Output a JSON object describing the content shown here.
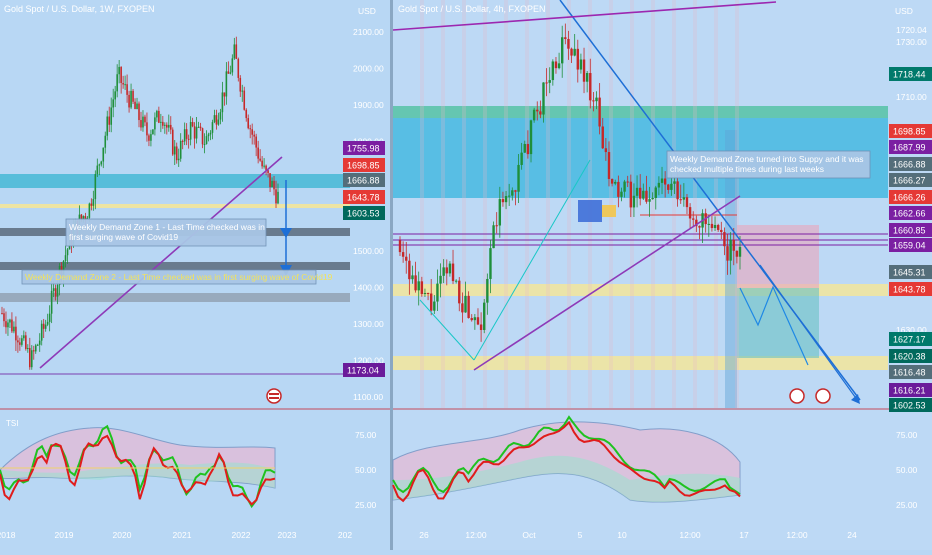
{
  "left_panel": {
    "symbol_title": "Gold Spot / U.S. Dollar, 1W, FXOPEN",
    "axis_unit": "USD",
    "price_ticks": [
      "2100.00",
      "2000.00",
      "1900.00",
      "1800.00",
      "1700.00",
      "1600.00",
      "1500.00",
      "1400.00",
      "1300.00",
      "1200.00",
      "1100.00"
    ],
    "time_labels": [
      "2018",
      "2019",
      "2020",
      "2021",
      "2022",
      "2023",
      "202"
    ],
    "price_badges": [
      {
        "label": "1755.98",
        "color": "#7b1fa2"
      },
      {
        "label": "1698.85",
        "color": "#e53935"
      },
      {
        "label": "1666.88",
        "color": "#546e7a"
      },
      {
        "label": "1643.78",
        "color": "#e53935"
      },
      {
        "label": "1603.53",
        "color": "#00695c"
      },
      {
        "label": "1173.04",
        "color": "#6a1b9a"
      }
    ],
    "annotations": [
      "Weekly Demand Zone 1 - Last Time checked was in first surging wave of Covid19",
      "Weekly Demand Zone 2 - Last Time checked was in first surging wave of Covid19"
    ],
    "osc_label": "TSI",
    "osc_ticks": [
      "75.00",
      "50.00",
      "25.00"
    ],
    "chart_data": {
      "type": "line",
      "x_labels": [
        "2018",
        "2019",
        "2020",
        "2021",
        "2022",
        "2023"
      ],
      "close": [
        1330,
        1280,
        1200,
        1300,
        1450,
        1560,
        1620,
        1800,
        1980,
        1900,
        1820,
        1880,
        1760,
        1840,
        1800,
        1900,
        2040,
        1850,
        1720,
        1650
      ],
      "ylim": [
        1100,
        2100
      ],
      "zones": [
        [
          1660,
          1676
        ],
        [
          1540,
          1555
        ],
        [
          1450,
          1465
        ],
        [
          1380,
          1395
        ]
      ]
    }
  },
  "right_panel": {
    "symbol_title": "Gold Spot / U.S. Dollar, 4h, FXOPEN",
    "axis_unit": "USD",
    "price_ticks": [
      "1720.04",
      "1730.00",
      "1710.00",
      "1690.00",
      "1670.00",
      "1650.00",
      "1630.00"
    ],
    "time_labels": [
      "26",
      "12:00",
      "Oct",
      "5",
      "10",
      "12:00",
      "17",
      "12:00",
      "24"
    ],
    "price_badges": [
      {
        "label": "1718.44",
        "color": "#00796b"
      },
      {
        "label": "1698.85",
        "color": "#e53935"
      },
      {
        "label": "1687.99",
        "color": "#7b1fa2"
      },
      {
        "label": "1666.88",
        "color": "#546e7a"
      },
      {
        "label": "1666.27",
        "color": "#546e7a"
      },
      {
        "label": "1666.26",
        "color": "#e53935"
      },
      {
        "label": "1662.66",
        "color": "#7b1fa2"
      },
      {
        "label": "1660.85",
        "color": "#7b1fa2"
      },
      {
        "label": "1659.04",
        "color": "#7b1fa2"
      },
      {
        "label": "1645.31",
        "color": "#546e7a"
      },
      {
        "label": "1643.78",
        "color": "#e53935"
      },
      {
        "label": "1627.17",
        "color": "#00796b"
      },
      {
        "label": "1620.38",
        "color": "#00695c"
      },
      {
        "label": "1616.48",
        "color": "#546e7a"
      },
      {
        "label": "1616.21",
        "color": "#6a1b9a"
      },
      {
        "label": "1602.53",
        "color": "#00695c"
      }
    ],
    "annotation": "Weekly Demand Zone turned into Suppy and it was checked multiple times during last weeks",
    "osc_ticks": [
      "75.00",
      "50.00",
      "25.00"
    ],
    "chart_data": {
      "type": "line",
      "x_labels": [
        "26",
        "12:00",
        "Oct",
        "5",
        "10",
        "12:00",
        "17",
        "12:00",
        "24"
      ],
      "close": [
        1650,
        1630,
        1625,
        1640,
        1625,
        1620,
        1660,
        1670,
        1690,
        1710,
        1725,
        1720,
        1705,
        1670,
        1668,
        1665,
        1672,
        1668,
        1660,
        1655,
        1648,
        1644
      ],
      "ylim": [
        1600,
        1735
      ],
      "zones": [
        [
          1666,
          1698
        ],
        [
          1642,
          1646
        ],
        [
          1618,
          1624
        ]
      ]
    }
  }
}
